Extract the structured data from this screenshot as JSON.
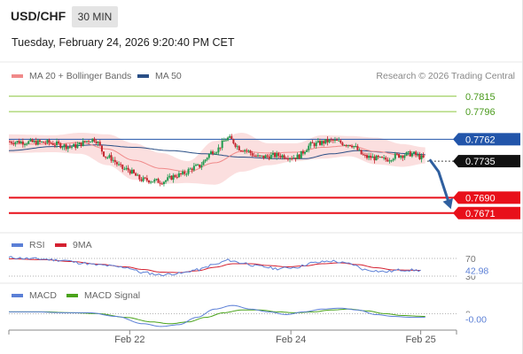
{
  "header": {
    "pair": "USD/CHF",
    "timeframe": "30 MIN",
    "datetime": "Tuesday, February 24, 2026 9:20:40 PM CET"
  },
  "credit": "Research © 2026 Trading Central",
  "colors": {
    "resistance": "#8cc63f",
    "resistance_text": "#4a9a1c",
    "support": "#e8101a",
    "pivot": "#2255aa",
    "current": "#111111",
    "candle_up": "#1f9a4e",
    "candle_down": "#c4262e",
    "ma20": "#f08a8a",
    "band_fill": "#fbdcdc",
    "ma50": "#2a4f86",
    "rsi": "#5b7fd6",
    "rsi_ma": "#d42030",
    "macd": "#5b7fd6",
    "macd_signal": "#4aa31a",
    "arrow": "#2f5f9f"
  },
  "chart_data": [
    {
      "type": "candlestick",
      "legend": [
        {
          "label": "MA 20 + Bollinger Bands",
          "color": "#f08a8a"
        },
        {
          "label": "MA 50",
          "color": "#2a4f86"
        }
      ],
      "ylim": [
        0.765,
        0.783
      ],
      "xlim": [
        0,
        100
      ],
      "x_ticks": [
        {
          "x": 27,
          "label": "Feb 22"
        },
        {
          "x": 63,
          "label": "Feb 24"
        },
        {
          "x": 92,
          "label": "Feb 25"
        }
      ],
      "levels": [
        {
          "value": 0.7815,
          "label": "0.7815",
          "kind": "resistance"
        },
        {
          "value": 0.7796,
          "label": "0.7796",
          "kind": "resistance"
        },
        {
          "value": 0.7762,
          "label": "0.7762",
          "kind": "pivot"
        },
        {
          "value": 0.7735,
          "label": "0.7735",
          "kind": "current"
        },
        {
          "value": 0.769,
          "label": "0.7690",
          "kind": "support"
        },
        {
          "value": 0.7671,
          "label": "0.7671",
          "kind": "support"
        }
      ],
      "anchors": [
        [
          0,
          0.7759
        ],
        [
          8,
          0.7758
        ],
        [
          14,
          0.7753
        ],
        [
          19,
          0.7762
        ],
        [
          22,
          0.774
        ],
        [
          26,
          0.7725
        ],
        [
          30,
          0.7712
        ],
        [
          34,
          0.771
        ],
        [
          38,
          0.7718
        ],
        [
          42,
          0.7728
        ],
        [
          46,
          0.7748
        ],
        [
          49,
          0.7763
        ],
        [
          52,
          0.775
        ],
        [
          56,
          0.774
        ],
        [
          60,
          0.7742
        ],
        [
          64,
          0.774
        ],
        [
          68,
          0.7756
        ],
        [
          72,
          0.776
        ],
        [
          76,
          0.7756
        ],
        [
          80,
          0.774
        ],
        [
          84,
          0.7737
        ],
        [
          87,
          0.7742
        ],
        [
          90,
          0.7744
        ],
        [
          93,
          0.7738
        ]
      ],
      "ma20_anchors": [
        [
          0,
          0.7756
        ],
        [
          10,
          0.7756
        ],
        [
          16,
          0.7758
        ],
        [
          22,
          0.775
        ],
        [
          28,
          0.7736
        ],
        [
          34,
          0.7726
        ],
        [
          40,
          0.7722
        ],
        [
          46,
          0.7733
        ],
        [
          52,
          0.7747
        ],
        [
          58,
          0.7745
        ],
        [
          64,
          0.7746
        ],
        [
          70,
          0.7752
        ],
        [
          76,
          0.7754
        ],
        [
          82,
          0.7747
        ],
        [
          88,
          0.7742
        ],
        [
          93,
          0.7742
        ]
      ],
      "band_upper_anchors": [
        [
          0,
          0.7768
        ],
        [
          10,
          0.7767
        ],
        [
          16,
          0.777
        ],
        [
          22,
          0.7768
        ],
        [
          28,
          0.7757
        ],
        [
          34,
          0.7745
        ],
        [
          40,
          0.7735
        ],
        [
          46,
          0.776
        ],
        [
          52,
          0.777
        ],
        [
          58,
          0.7757
        ],
        [
          64,
          0.7757
        ],
        [
          70,
          0.7767
        ],
        [
          76,
          0.7766
        ],
        [
          82,
          0.7764
        ],
        [
          88,
          0.7756
        ],
        [
          93,
          0.7752
        ]
      ],
      "band_lower_anchors": [
        [
          0,
          0.7745
        ],
        [
          10,
          0.7746
        ],
        [
          16,
          0.7744
        ],
        [
          22,
          0.773
        ],
        [
          28,
          0.7712
        ],
        [
          34,
          0.7707
        ],
        [
          40,
          0.7708
        ],
        [
          46,
          0.7706
        ],
        [
          52,
          0.7722
        ],
        [
          58,
          0.773
        ],
        [
          64,
          0.7735
        ],
        [
          70,
          0.7738
        ],
        [
          76,
          0.7741
        ],
        [
          82,
          0.7731
        ],
        [
          88,
          0.7728
        ],
        [
          93,
          0.7732
        ]
      ],
      "ma50_anchors": [
        [
          0,
          0.7748
        ],
        [
          10,
          0.7753
        ],
        [
          20,
          0.7755
        ],
        [
          28,
          0.7752
        ],
        [
          36,
          0.7748
        ],
        [
          44,
          0.7744
        ],
        [
          52,
          0.774
        ],
        [
          60,
          0.7738
        ],
        [
          66,
          0.7738
        ],
        [
          72,
          0.7744
        ],
        [
          78,
          0.7748
        ],
        [
          84,
          0.7746
        ],
        [
          90,
          0.7744
        ],
        [
          93,
          0.7743
        ]
      ],
      "projection": {
        "from": [
          94,
          0.7737
        ],
        "via": [
          96,
          0.7722
        ],
        "to": [
          98.5,
          0.768
        ]
      }
    },
    {
      "type": "line",
      "legend": [
        {
          "label": "RSI",
          "color": "#5b7fd6"
        },
        {
          "label": "9MA",
          "color": "#d42030"
        }
      ],
      "ylim": [
        20,
        80
      ],
      "tick_labels": [
        {
          "value": 70,
          "label": "70"
        },
        {
          "value": 30,
          "label": "30"
        }
      ],
      "last_value": {
        "value": 42.98,
        "label": "42.98"
      },
      "series": [
        {
          "name": "RSI",
          "anchors": [
            [
              0,
              72
            ],
            [
              6,
              69
            ],
            [
              12,
              66
            ],
            [
              16,
              60
            ],
            [
              20,
              55
            ],
            [
              26,
              50
            ],
            [
              30,
              38
            ],
            [
              34,
              33
            ],
            [
              38,
              36
            ],
            [
              42,
              44
            ],
            [
              46,
              56
            ],
            [
              49,
              66
            ],
            [
              52,
              60
            ],
            [
              56,
              52
            ],
            [
              60,
              47
            ],
            [
              64,
              50
            ],
            [
              68,
              60
            ],
            [
              72,
              64
            ],
            [
              76,
              58
            ],
            [
              80,
              44
            ],
            [
              84,
              40
            ],
            [
              88,
              44
            ],
            [
              92,
              43
            ]
          ]
        },
        {
          "name": "9MA",
          "anchors": [
            [
              0,
              69
            ],
            [
              8,
              67
            ],
            [
              14,
              63
            ],
            [
              20,
              57
            ],
            [
              26,
              51
            ],
            [
              30,
              45
            ],
            [
              34,
              39
            ],
            [
              38,
              38
            ],
            [
              42,
              42
            ],
            [
              46,
              50
            ],
            [
              50,
              58
            ],
            [
              54,
              58
            ],
            [
              58,
              54
            ],
            [
              62,
              51
            ],
            [
              66,
              53
            ],
            [
              70,
              58
            ],
            [
              74,
              60
            ],
            [
              78,
              56
            ],
            [
              82,
              49
            ],
            [
              86,
              44
            ],
            [
              92,
              43
            ]
          ]
        }
      ]
    },
    {
      "type": "line",
      "legend": [
        {
          "label": "MACD",
          "color": "#5b7fd6"
        },
        {
          "label": "MACD Signal",
          "color": "#4aa31a"
        }
      ],
      "ylim": [
        -0.0016,
        0.0012
      ],
      "tick_labels": [
        {
          "value": 0,
          "label": "0"
        }
      ],
      "last_value": {
        "value": 0,
        "label": "-0.00"
      },
      "series": [
        {
          "name": "MACD",
          "anchors": [
            [
              0,
              0.0002
            ],
            [
              6,
              0.0002
            ],
            [
              12,
              0.0001
            ],
            [
              18,
              0.0001
            ],
            [
              24,
              -0.0003
            ],
            [
              30,
              -0.0011
            ],
            [
              34,
              -0.0014
            ],
            [
              38,
              -0.0012
            ],
            [
              42,
              -0.0004
            ],
            [
              46,
              0.0005
            ],
            [
              50,
              0.0009
            ],
            [
              54,
              0.0005
            ],
            [
              58,
              0.0002
            ],
            [
              62,
              -0.0001
            ],
            [
              66,
              0.0002
            ],
            [
              70,
              0.0005
            ],
            [
              74,
              0.0006
            ],
            [
              78,
              0.0004
            ],
            [
              82,
              -0.0001
            ],
            [
              86,
              -0.0003
            ],
            [
              90,
              -0.0004
            ],
            [
              93,
              -0.0004
            ]
          ]
        },
        {
          "name": "MACD Signal",
          "anchors": [
            [
              0,
              0.0002
            ],
            [
              8,
              0.0002
            ],
            [
              14,
              0.0001
            ],
            [
              20,
              0.0
            ],
            [
              26,
              -0.0004
            ],
            [
              32,
              -0.0009
            ],
            [
              36,
              -0.0011
            ],
            [
              40,
              -0.0009
            ],
            [
              44,
              -0.0004
            ],
            [
              48,
              0.0001
            ],
            [
              52,
              0.0004
            ],
            [
              56,
              0.0004
            ],
            [
              60,
              0.0002
            ],
            [
              64,
              0.0001
            ],
            [
              68,
              0.0002
            ],
            [
              72,
              0.0004
            ],
            [
              76,
              0.0005
            ],
            [
              80,
              0.0003
            ],
            [
              84,
              0.0
            ],
            [
              88,
              -0.0002
            ],
            [
              93,
              -0.0003
            ]
          ]
        }
      ]
    }
  ]
}
